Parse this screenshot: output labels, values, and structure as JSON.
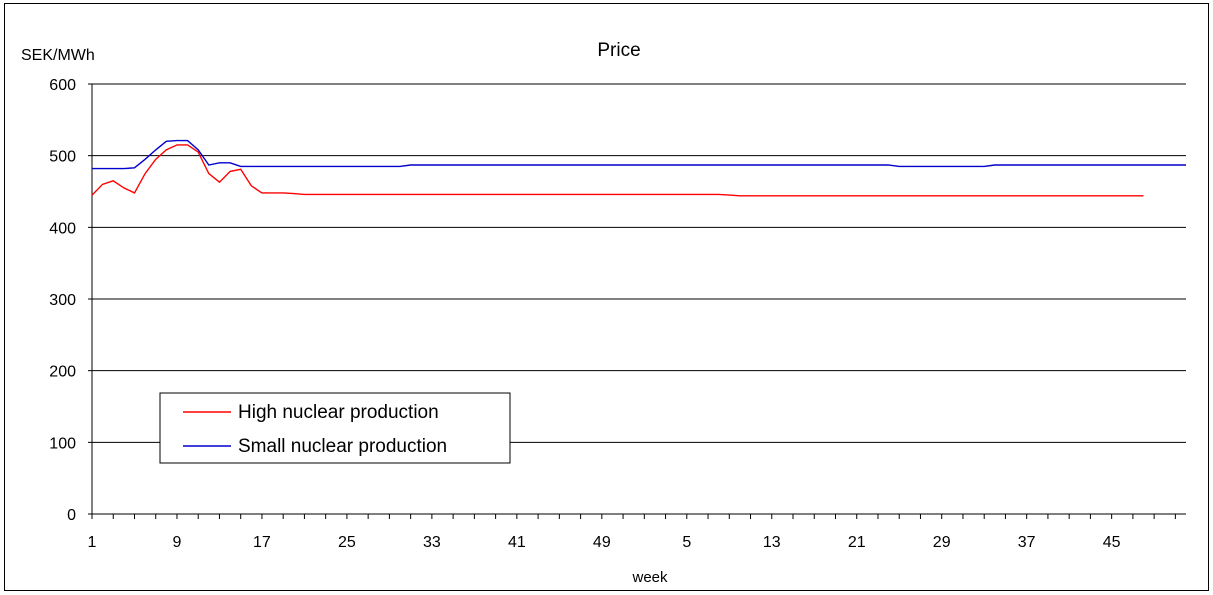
{
  "chart_data": {
    "type": "line",
    "title": "Price",
    "ylabel": "SEK/MWh",
    "xlabel": "week",
    "ylim": [
      0,
      600
    ],
    "yticks": [
      0,
      100,
      200,
      300,
      400,
      500,
      600
    ],
    "grid": "horizontal",
    "legend_position": "bottom-left",
    "x_count": 104,
    "x_tick_labels": [
      "1",
      "9",
      "17",
      "25",
      "33",
      "41",
      "49",
      "5",
      "13",
      "21",
      "29",
      "37",
      "45"
    ],
    "series": [
      {
        "name": "High nuclear production",
        "color": "#ff0000",
        "values": [
          445,
          460,
          465,
          455,
          448,
          475,
          495,
          508,
          515,
          515,
          505,
          475,
          463,
          478,
          481,
          458,
          448,
          448,
          448,
          447,
          446,
          446,
          446,
          446,
          446,
          446,
          446,
          446,
          446,
          446,
          446,
          446,
          446,
          446,
          446,
          446,
          446,
          446,
          446,
          446,
          446,
          446,
          446,
          446,
          446,
          446,
          446,
          446,
          446,
          446,
          446,
          446,
          446,
          446,
          446,
          446,
          446,
          446,
          446,
          446,
          445,
          444,
          444,
          444,
          444,
          444,
          444,
          444,
          444,
          444,
          444,
          444,
          444,
          444,
          444,
          444,
          444,
          444,
          444,
          444,
          444,
          444,
          444,
          444,
          444,
          444,
          444,
          444,
          444,
          444,
          444,
          444,
          444,
          444,
          444,
          444,
          444,
          444,
          444,
          444
        ]
      },
      {
        "name": "Small nuclear production",
        "color": "#0000cc",
        "values": [
          482,
          482,
          482,
          482,
          483,
          495,
          508,
          520,
          521,
          521,
          508,
          487,
          490,
          490,
          485,
          485,
          485,
          485,
          485,
          485,
          485,
          485,
          485,
          485,
          485,
          485,
          485,
          485,
          485,
          485,
          487,
          487,
          487,
          487,
          487,
          487,
          487,
          487,
          487,
          487,
          487,
          487,
          487,
          487,
          487,
          487,
          487,
          487,
          487,
          487,
          487,
          487,
          487,
          487,
          487,
          487,
          487,
          487,
          487,
          487,
          487,
          487,
          487,
          487,
          487,
          487,
          487,
          487,
          487,
          487,
          487,
          487,
          487,
          487,
          487,
          487,
          485,
          485,
          485,
          485,
          485,
          485,
          485,
          485,
          485,
          487,
          487,
          487,
          487,
          487,
          487,
          487,
          487,
          487,
          487,
          487,
          487,
          487,
          487,
          487,
          487,
          487,
          487,
          487
        ]
      }
    ]
  }
}
